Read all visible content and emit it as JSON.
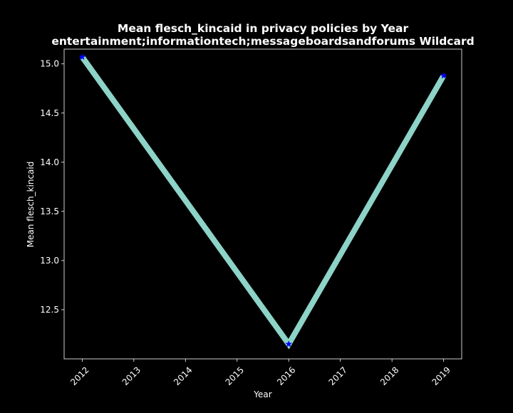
{
  "chart_data": {
    "type": "line",
    "title_line1": "Mean flesch_kincaid in privacy policies by Year",
    "title_line2": "entertainment;informationtech;messageboardsandforums Wildcard",
    "xlabel": "Year",
    "ylabel": "Mean flesch_kincaid",
    "x_ticks": [
      "2012",
      "2013",
      "2014",
      "2015",
      "2016",
      "2017",
      "2018",
      "2019"
    ],
    "y_ticks": [
      "12.5",
      "13.0",
      "13.5",
      "14.0",
      "14.5",
      "15.0"
    ],
    "xlim": [
      2011.65,
      2019.35
    ],
    "ylim": [
      12.0,
      15.15
    ],
    "x": [
      2012,
      2016,
      2019
    ],
    "y": [
      15.07,
      12.15,
      14.88
    ],
    "line_color": "#8dd3c7",
    "marker_color": "#0000ff",
    "marker": "star",
    "background": "#000000",
    "text_color": "#ffffff",
    "legend": false,
    "grid": false
  }
}
